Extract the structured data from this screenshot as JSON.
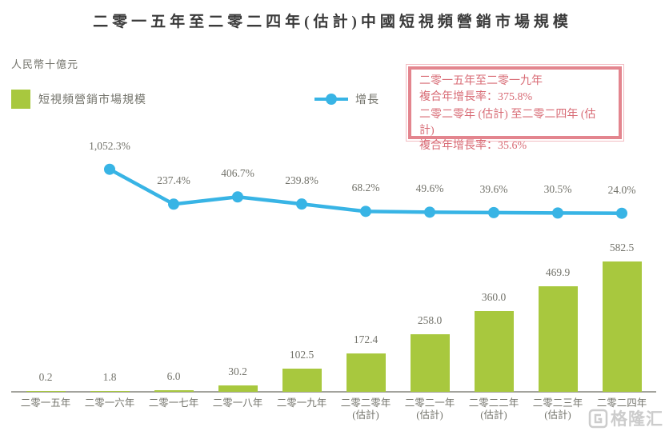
{
  "title": "二零一五年至二零二四年(估計)中國短視頻營銷市場規模",
  "unit_label": "人民幣十億元",
  "legend": {
    "bar_label": "短視頻營銷市場規模",
    "line_label": "增長"
  },
  "annotation_box": {
    "lines": [
      "二零一五年至二零一九年",
      "複合年增長率：375.8%",
      "二零二零年 (估計) 至二零二四年 (估計)",
      "複合年增長率：35.6%"
    ]
  },
  "watermark_text": "格隆汇",
  "colors": {
    "bar": "#a8c83e",
    "line": "#38b4e5",
    "box_border": "#e3858e",
    "box_border_light": "#f3bcc2",
    "box_text": "#d86b75",
    "label_gray": "#73736b",
    "title": "#3a3a3a",
    "axis": "#a3a39d",
    "watermark": "#cccccc"
  },
  "chart_data": {
    "type": "bar",
    "title": "二零一五年至二零二四年(估計)中國短視頻營銷市場規模",
    "ylabel": "人民幣十億元",
    "legend_position": "top",
    "grid": false,
    "categories": [
      "二零一五年",
      "二零一六年",
      "二零一七年",
      "二零一八年",
      "二零一九年",
      "二零二零年",
      "二零二一年",
      "二零二二年",
      "二零二三年",
      "二零二四年"
    ],
    "category_notes": [
      "",
      "",
      "",
      "",
      "",
      "(估計)",
      "(估計)",
      "(估計)",
      "(估計)",
      ""
    ],
    "series": [
      {
        "name": "短視頻營銷市場規模",
        "type": "bar",
        "values": [
          0.2,
          1.8,
          6.0,
          30.2,
          102.5,
          172.4,
          258.0,
          360.0,
          469.9,
          582.5
        ],
        "labels": [
          "0.2",
          "1.8",
          "6.0",
          "30.2",
          "102.5",
          "172.4",
          "258.0",
          "360.0",
          "469.9",
          "582.5"
        ]
      },
      {
        "name": "增長",
        "type": "line",
        "unit": "%",
        "values": [
          null,
          1052.3,
          237.4,
          406.7,
          239.8,
          68.2,
          49.6,
          39.6,
          30.5,
          24.0
        ],
        "labels": [
          "",
          "1,052.3%",
          "237.4%",
          "406.7%",
          "239.8%",
          "68.2%",
          "49.6%",
          "39.6%",
          "30.5%",
          "24.0%"
        ]
      }
    ],
    "annotations": [
      "二零一五年至二零一九年 複合年增長率：375.8%",
      "二零二零年 (估計) 至二零二四年 (估計) 複合年增長率：35.6%"
    ]
  }
}
